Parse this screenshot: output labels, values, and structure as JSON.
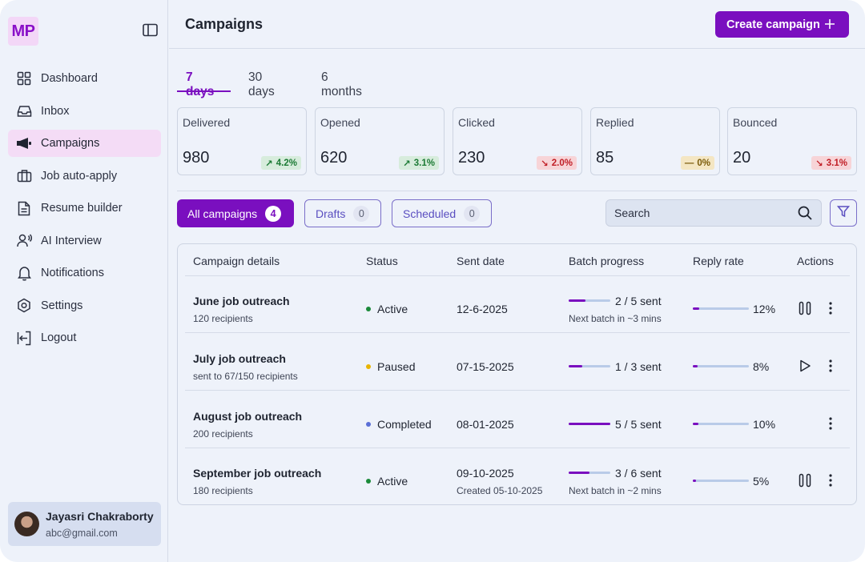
{
  "brand": {
    "logo_text": "MP",
    "accent": "#7a0fbf"
  },
  "sidebar": {
    "items": [
      {
        "label": "Dashboard",
        "icon": "grid-icon"
      },
      {
        "label": "Inbox",
        "icon": "inbox-icon"
      },
      {
        "label": "Campaigns",
        "icon": "megaphone-icon",
        "active": true
      },
      {
        "label": "Job auto-apply",
        "icon": "briefcase-icon"
      },
      {
        "label": "Resume builder",
        "icon": "document-icon"
      },
      {
        "label": "AI Interview",
        "icon": "person-voice-icon"
      },
      {
        "label": "Notifications",
        "icon": "bell-icon"
      },
      {
        "label": "Settings",
        "icon": "gear-icon"
      },
      {
        "label": "Logout",
        "icon": "logout-icon"
      }
    ],
    "user": {
      "name": "Jayasri Chakraborty",
      "email": "abc@gmail.com"
    }
  },
  "header": {
    "title": "Campaigns",
    "create_label": "Create campaign"
  },
  "tabs": [
    {
      "label": "7 days",
      "active": true
    },
    {
      "label": "30 days"
    },
    {
      "label": "6 months"
    }
  ],
  "stats": [
    {
      "label": "Delivered",
      "value": "980",
      "change": "4.2%",
      "trend": "up"
    },
    {
      "label": "Opened",
      "value": "620",
      "change": "3.1%",
      "trend": "up"
    },
    {
      "label": "Clicked",
      "value": "230",
      "change": "2.0%",
      "trend": "down"
    },
    {
      "label": "Replied",
      "value": "85",
      "change": "0%",
      "trend": "flat"
    },
    {
      "label": "Bounced",
      "value": "20",
      "change": "3.1%",
      "trend": "down"
    }
  ],
  "filters": {
    "all": {
      "label": "All campaigns",
      "count": "4"
    },
    "drafts": {
      "label": "Drafts",
      "count": "0"
    },
    "scheduled": {
      "label": "Scheduled",
      "count": "0"
    },
    "search_placeholder": "Search"
  },
  "table": {
    "headers": [
      "Campaign details",
      "Status",
      "Sent date",
      "Batch progress",
      "Reply rate",
      "Actions"
    ],
    "rows": [
      {
        "name": "June job outreach",
        "sub": "120 recipients",
        "status": "Active",
        "status_color": "#1b8a3a",
        "date": "12-6-2025",
        "date_sub": "",
        "batch": "2 / 5 sent",
        "batch_fraction": 0.4,
        "batch_sub": "Next batch in ~3 mins",
        "reply": "12%",
        "reply_fraction": 0.12,
        "action": "pause"
      },
      {
        "name": "July job outreach",
        "sub": "sent to 67/150 recipients",
        "status": "Paused",
        "status_color": "#e8b400",
        "date": "07-15-2025",
        "date_sub": "",
        "batch": "1 / 3 sent",
        "batch_fraction": 0.33,
        "batch_sub": "",
        "reply": "8%",
        "reply_fraction": 0.08,
        "action": "play"
      },
      {
        "name": "August job outreach",
        "sub": "200 recipients",
        "status": "Completed",
        "status_color": "#5b6fd6",
        "date": "08-01-2025",
        "date_sub": "",
        "batch": "5 / 5 sent",
        "batch_fraction": 1.0,
        "batch_sub": "",
        "reply": "10%",
        "reply_fraction": 0.1,
        "action": "none"
      },
      {
        "name": "September job outreach",
        "sub": "180 recipients",
        "status": "Active",
        "status_color": "#1b8a3a",
        "date": "09-10-2025",
        "date_sub": "Created 05-10-2025",
        "batch": "3 / 6 sent",
        "batch_fraction": 0.5,
        "batch_sub": "Next batch in ~2 mins",
        "reply": "5%",
        "reply_fraction": 0.05,
        "action": "pause"
      }
    ]
  }
}
